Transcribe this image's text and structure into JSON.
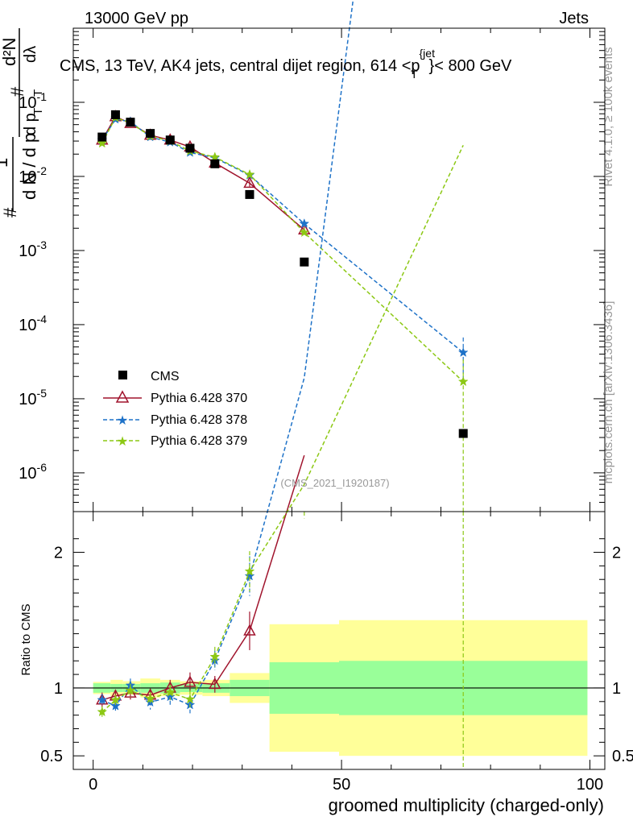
{
  "header": {
    "beam": "13000 GeV pp",
    "process": "Jets",
    "rivet_label": "Rivet 4.1.0, ≥ 100k events",
    "mcplots_label": "mcplots.cern.ch [arXiv:1306.3436]",
    "analysis_id": "(CMS_2021_I1920187)"
  },
  "chart_data": {
    "type": "line",
    "title_parts": {
      "pre": "CMS, 13 TeV, AK4 jets, central dijet region, 614 <p",
      "sup": "{jet",
      "sub": "T",
      "post": "}< 800 GeV"
    },
    "ylabel_parts": {
      "one": "1",
      "hash": "#",
      "dN": "d N / d p",
      "T": "T",
      "num": "d²N",
      "den": "d p",
      "dlam": "dλ"
    },
    "xlabel": "groomed multiplicity (charged-only)",
    "ratio_ylabel": "Ratio to CMS",
    "xlim": [
      -4,
      103
    ],
    "ylim_log": [
      3e-07,
      1
    ],
    "ratio_ylim": [
      0.4,
      2.3
    ],
    "x_ticks": [
      {
        "v": 0,
        "label": "0"
      },
      {
        "v": 50,
        "label": "50"
      },
      {
        "v": 100,
        "label": "100"
      }
    ],
    "y_ticks": [
      {
        "exp": -1,
        "base": "10",
        "sup": "-1"
      },
      {
        "exp": -2,
        "base": "10",
        "sup": "-2"
      },
      {
        "exp": -3,
        "base": "10",
        "sup": "-3"
      },
      {
        "exp": -4,
        "base": "10",
        "sup": "-4"
      },
      {
        "exp": -5,
        "base": "10",
        "sup": "-5"
      },
      {
        "exp": -6,
        "base": "10",
        "sup": "-6"
      }
    ],
    "ratio_ticks": [
      {
        "v": 0.5,
        "label": "0.5"
      },
      {
        "v": 1,
        "label": "1"
      },
      {
        "v": 2,
        "label": "2"
      }
    ],
    "bins": [
      {
        "lo": 0,
        "hi": 3.5,
        "x": 1.8,
        "cms": 0.034,
        "band1": 0.035,
        "band2": 0.045
      },
      {
        "lo": 3.5,
        "hi": 6,
        "x": 4.5,
        "cms": 0.068,
        "band1": 0.03,
        "band2": 0.06
      },
      {
        "lo": 6,
        "hi": 9.5,
        "x": 7.5,
        "cms": 0.054,
        "band1": 0.03,
        "band2": 0.05
      },
      {
        "lo": 9.5,
        "hi": 13.5,
        "x": 11.5,
        "cms": 0.038,
        "band1": 0.035,
        "band2": 0.07
      },
      {
        "lo": 13.5,
        "hi": 17.5,
        "x": 15.5,
        "cms": 0.031,
        "band1": 0.04,
        "band2": 0.06
      },
      {
        "lo": 17.5,
        "hi": 22,
        "x": 19.5,
        "cms": 0.024,
        "band1": 0.03,
        "band2": 0.05
      },
      {
        "lo": 22,
        "hi": 27.5,
        "x": 24.5,
        "cms": 0.0148,
        "band1": 0.035,
        "band2": 0.06
      },
      {
        "lo": 27.5,
        "hi": 35.5,
        "x": 31.5,
        "cms": 0.0057,
        "band1": 0.06,
        "band2": 0.11
      },
      {
        "lo": 35.5,
        "hi": 49.5,
        "x": 42.5,
        "cms": 0.0007,
        "band1": 0.19,
        "band2": 0.47
      },
      {
        "lo": 49.5,
        "hi": 99.5,
        "x": 74.5,
        "cms": 3.4e-06,
        "band1": 0.2,
        "band2": 0.5
      }
    ],
    "series": [
      {
        "name": "CMS",
        "style": "data",
        "color": "#000000"
      },
      {
        "name": "Pythia 6.428 370",
        "style": "triangle",
        "color": "#a0142d",
        "values": [
          0.031,
          0.064,
          0.052,
          0.036,
          0.031,
          0.025,
          0.0152,
          0.0081,
          0.0019,
          null
        ],
        "errs": [
          0.06,
          0.04,
          0.05,
          0.05,
          0.06,
          0.07,
          0.06,
          0.1,
          0.12,
          null
        ]
      },
      {
        "name": "Pythia 6.428 378",
        "style": "star",
        "color": "#1e72c8",
        "values": [
          0.031,
          0.059,
          0.055,
          0.034,
          0.029,
          0.021,
          0.0178,
          0.0104,
          0.0023,
          4.2e-05
        ],
        "errs": [
          0.05,
          0.04,
          0.05,
          0.06,
          0.07,
          0.07,
          0.06,
          0.08,
          0.1,
          0.6
        ]
      },
      {
        "name": "Pythia 6.428 379",
        "style": "star",
        "color": "#8cc814",
        "values": [
          0.028,
          0.062,
          0.053,
          0.035,
          0.03,
          0.022,
          0.0182,
          0.0106,
          0.00175,
          1.7e-05
        ],
        "errs": [
          0.05,
          0.04,
          0.05,
          0.05,
          0.06,
          0.07,
          0.06,
          0.08,
          0.1,
          0.99
        ]
      }
    ],
    "colors": {
      "band_inner": "#99ff99",
      "band_outer": "#ffff99",
      "cms_line": "#000000"
    }
  }
}
